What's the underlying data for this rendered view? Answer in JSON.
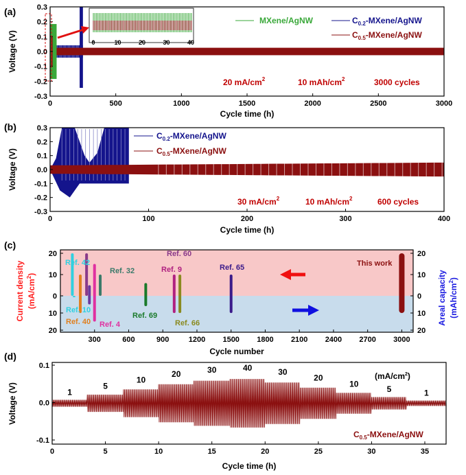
{
  "colors": {
    "mxene": "#3aa83a",
    "c02": "#14148c",
    "c05": "#8b1010",
    "anno": "#c00000",
    "pink": "#f8c8c8",
    "blue": "#c8dcec",
    "ref_left_axis": "#ff2020",
    "ref_right_axis": "#1a1ae0"
  },
  "chart_data": [
    {
      "id": "a",
      "type": "line",
      "panel_label": "(a)",
      "xlabel": "Cycle time (h)",
      "ylabel": "Voltage (V)",
      "xlim": [
        0,
        3000
      ],
      "ylim": [
        -0.3,
        0.3
      ],
      "xticks": [
        "0",
        "500",
        "1000",
        "1500",
        "2000",
        "2500",
        "3000"
      ],
      "yticks": [
        "-0.3",
        "-0.2",
        "-0.1",
        "0.0",
        "0.1",
        "0.2",
        "0.3"
      ],
      "series": [
        {
          "name": "MXene/AgNW",
          "color": "#3aa83a",
          "x_end": 50,
          "amplitude": 0.3
        },
        {
          "name": "C0.2-MXene/AgNW",
          "name_main": "C",
          "name_sub": "0.2",
          "name_rest": "-MXene/AgNW",
          "color": "#14148c",
          "x_end": 250,
          "amplitude": 0.3
        },
        {
          "name": "C0.5-MXene/AgNW",
          "name_main": "C",
          "name_sub": "0.5",
          "name_rest": "-MXene/AgNW",
          "color": "#8b1010",
          "x_end": 3000,
          "amplitude": 0.025
        }
      ],
      "inset": {
        "xticks": [
          "0",
          "10",
          "20",
          "30",
          "40"
        ]
      },
      "annotations": [
        "20 mA/cm",
        "2",
        "10 mAh/cm",
        "2",
        "3000 cycles"
      ]
    },
    {
      "id": "b",
      "type": "line",
      "panel_label": "(b)",
      "xlabel": "Cycle time (h)",
      "ylabel": "Voltage (V)",
      "xlim": [
        0,
        400
      ],
      "ylim": [
        -0.3,
        0.3
      ],
      "xticks": [
        "0",
        "100",
        "200",
        "300",
        "400"
      ],
      "yticks": [
        "-0.3",
        "-0.2",
        "-0.1",
        "0.0",
        "0.1",
        "0.2",
        "0.3"
      ],
      "series": [
        {
          "name": "C0.2-MXene/AgNW",
          "name_main": "C",
          "name_sub": "0.2",
          "name_rest": "-MXene/AgNW",
          "color": "#14148c",
          "x_end": 80,
          "amplitude": 0.3
        },
        {
          "name": "C0.5-MXene/AgNW",
          "name_main": "C",
          "name_sub": "0.5",
          "name_rest": "-MXene/AgNW",
          "color": "#8b1010",
          "x_end": 400,
          "amplitude": 0.05
        }
      ],
      "annotations": [
        "30 mA/cm",
        "2",
        "10 mAh/cm",
        "2",
        "600 cycles"
      ]
    },
    {
      "id": "c",
      "type": "bar",
      "panel_label": "(c)",
      "xlabel": "Cycle number",
      "ylabel_left": "Current density",
      "ylabel_left_unit": "(mA/cm",
      "ylabel_left_unit_sup": "2",
      "ylabel_left_unit_end": ")",
      "ylabel_right": "Areal capacity",
      "ylabel_right_unit": "(mAh/cm",
      "ylabel_right_unit_sup": "2",
      "ylabel_right_unit_end": ")",
      "xlim": [
        0,
        3100
      ],
      "xticks": [
        "300",
        "600",
        "900",
        "1200",
        "1500",
        "1800",
        "2100",
        "2400",
        "2700",
        "3000"
      ],
      "yticks_left": [
        "20",
        "10",
        "0",
        "10",
        "20"
      ],
      "yticks_right": [
        "20",
        "10",
        "0",
        "10",
        "20"
      ],
      "refs": [
        {
          "label": "Ref. 42",
          "x": 105,
          "current": 20,
          "capacity": 0,
          "color": "#30d0e0"
        },
        {
          "label": "Ref. 10",
          "x": 120,
          "current": 0,
          "capacity": 0,
          "color": "#30d0e0"
        },
        {
          "label": "Ref. 40",
          "x": 175,
          "current": 10,
          "capacity": 10,
          "color": "#e08020"
        },
        {
          "label": "Ref. 60",
          "x": 230,
          "current": 20,
          "capacity": 0,
          "color": "#8a3a8a"
        },
        {
          "label": "",
          "x": 255,
          "current": 5,
          "capacity": 5,
          "color": "#6a3aa0"
        },
        {
          "label": "Ref. 4",
          "x": 300,
          "current": 15,
          "capacity": 15,
          "color": "#e030a0"
        },
        {
          "label": "Ref. 32",
          "x": 350,
          "current": 10,
          "capacity": 0,
          "color": "#3a7a6a"
        },
        {
          "label": "Ref. 69",
          "x": 750,
          "current": 6,
          "capacity": 6,
          "color": "#1a7a2a"
        },
        {
          "label": "Ref. 9",
          "x": 1000,
          "current": 10,
          "capacity": 10,
          "color": "#b02080"
        },
        {
          "label": "Ref. 66",
          "x": 1050,
          "current": 10,
          "capacity": 10,
          "color": "#8a8a20"
        },
        {
          "label": "Ref. 65",
          "x": 1500,
          "current": 10,
          "capacity": 10,
          "color": "#3a1a8a"
        },
        {
          "label": "This work",
          "x": 3000,
          "current": 20,
          "capacity": 10,
          "color": "#8b1010"
        }
      ]
    },
    {
      "id": "d",
      "type": "line",
      "panel_label": "(d)",
      "xlabel": "Cycle time (h)",
      "ylabel": "Voltage (V)",
      "xlim": [
        0,
        37
      ],
      "ylim": [
        -0.1,
        0.1
      ],
      "xticks": [
        "0",
        "5",
        "10",
        "15",
        "20",
        "25",
        "30",
        "35"
      ],
      "yticks": [
        "-0.1",
        "0.0",
        "0.1"
      ],
      "series": [
        {
          "name": "C0.5-MXene/AgNW",
          "name_main": "C",
          "name_sub": "0.5",
          "name_rest": "-MXene/AgNW",
          "color": "#8b1010"
        }
      ],
      "unit_label": "(mA/cm",
      "unit_label_sup": "2",
      "unit_label_end": ")",
      "steps": [
        {
          "label": "1",
          "x_start": 0,
          "x_end": 3.3,
          "amplitude": 0.01
        },
        {
          "label": "5",
          "x_start": 3.3,
          "x_end": 6.7,
          "amplitude": 0.025
        },
        {
          "label": "10",
          "x_start": 6.7,
          "x_end": 10,
          "amplitude": 0.04
        },
        {
          "label": "20",
          "x_start": 10,
          "x_end": 13.3,
          "amplitude": 0.055
        },
        {
          "label": "30",
          "x_start": 13.3,
          "x_end": 16.7,
          "amplitude": 0.065
        },
        {
          "label": "40",
          "x_start": 16.7,
          "x_end": 20,
          "amplitude": 0.07
        },
        {
          "label": "30",
          "x_start": 20,
          "x_end": 23.3,
          "amplitude": 0.06
        },
        {
          "label": "20",
          "x_start": 23.3,
          "x_end": 26.7,
          "amplitude": 0.045
        },
        {
          "label": "10",
          "x_start": 26.7,
          "x_end": 30,
          "amplitude": 0.03
        },
        {
          "label": "5",
          "x_start": 30,
          "x_end": 33.3,
          "amplitude": 0.018
        },
        {
          "label": "1",
          "x_start": 33.3,
          "x_end": 37,
          "amplitude": 0.008
        }
      ]
    }
  ]
}
